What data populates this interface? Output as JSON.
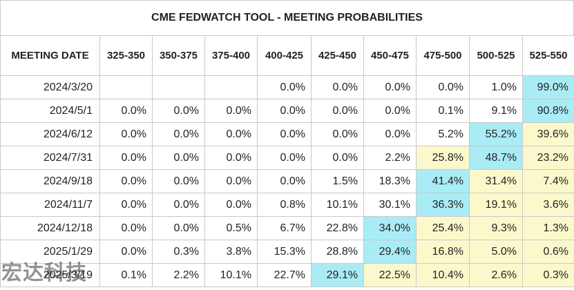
{
  "title": "CME FEDWATCH TOOL - MEETING PROBABILITIES",
  "columns": [
    "MEETING DATE",
    "325-350",
    "350-375",
    "375-400",
    "400-425",
    "425-450",
    "450-475",
    "475-500",
    "500-525",
    "525-550"
  ],
  "colors": {
    "highlight_max": "#a9ecf5",
    "highlight_second": "#fbf9cc",
    "border": "#c8c8c8"
  },
  "rows": [
    {
      "date": "2024/3/20",
      "values": [
        "",
        "",
        "",
        "0.0%",
        "0.0%",
        "0.0%",
        "0.0%",
        "1.0%",
        "99.0%"
      ],
      "highlight": [
        "",
        "",
        "",
        "",
        "",
        "",
        "",
        "",
        "max"
      ]
    },
    {
      "date": "2024/5/1",
      "values": [
        "0.0%",
        "0.0%",
        "0.0%",
        "0.0%",
        "0.0%",
        "0.0%",
        "0.1%",
        "9.1%",
        "90.8%"
      ],
      "highlight": [
        "",
        "",
        "",
        "",
        "",
        "",
        "",
        "",
        "max"
      ]
    },
    {
      "date": "2024/6/12",
      "values": [
        "0.0%",
        "0.0%",
        "0.0%",
        "0.0%",
        "0.0%",
        "0.0%",
        "5.2%",
        "55.2%",
        "39.6%"
      ],
      "highlight": [
        "",
        "",
        "",
        "",
        "",
        "",
        "",
        "max",
        "second"
      ]
    },
    {
      "date": "2024/7/31",
      "values": [
        "0.0%",
        "0.0%",
        "0.0%",
        "0.0%",
        "0.0%",
        "2.2%",
        "25.8%",
        "48.7%",
        "23.2%"
      ],
      "highlight": [
        "",
        "",
        "",
        "",
        "",
        "",
        "second",
        "max",
        "second"
      ]
    },
    {
      "date": "2024/9/18",
      "values": [
        "0.0%",
        "0.0%",
        "0.0%",
        "0.0%",
        "1.5%",
        "18.3%",
        "41.4%",
        "31.4%",
        "7.4%"
      ],
      "highlight": [
        "",
        "",
        "",
        "",
        "",
        "",
        "max",
        "second",
        "second"
      ]
    },
    {
      "date": "2024/11/7",
      "values": [
        "0.0%",
        "0.0%",
        "0.0%",
        "0.8%",
        "10.1%",
        "30.1%",
        "36.3%",
        "19.1%",
        "3.6%"
      ],
      "highlight": [
        "",
        "",
        "",
        "",
        "",
        "",
        "max",
        "second",
        "second"
      ]
    },
    {
      "date": "2024/12/18",
      "values": [
        "0.0%",
        "0.0%",
        "0.5%",
        "6.7%",
        "22.8%",
        "34.0%",
        "25.4%",
        "9.3%",
        "1.3%"
      ],
      "highlight": [
        "",
        "",
        "",
        "",
        "",
        "max",
        "second",
        "second",
        "second"
      ]
    },
    {
      "date": "2025/1/29",
      "values": [
        "0.0%",
        "0.3%",
        "3.8%",
        "15.3%",
        "28.8%",
        "29.4%",
        "16.8%",
        "5.0%",
        "0.6%"
      ],
      "highlight": [
        "",
        "",
        "",
        "",
        "",
        "max",
        "second",
        "second",
        "second"
      ]
    },
    {
      "date": "2025/3/19",
      "values": [
        "0.1%",
        "2.2%",
        "10.1%",
        "22.7%",
        "29.1%",
        "22.5%",
        "10.4%",
        "2.6%",
        "0.3%"
      ],
      "highlight": [
        "",
        "",
        "",
        "",
        "max",
        "second",
        "second",
        "second",
        "second"
      ]
    }
  ],
  "watermark": "宏达科技"
}
